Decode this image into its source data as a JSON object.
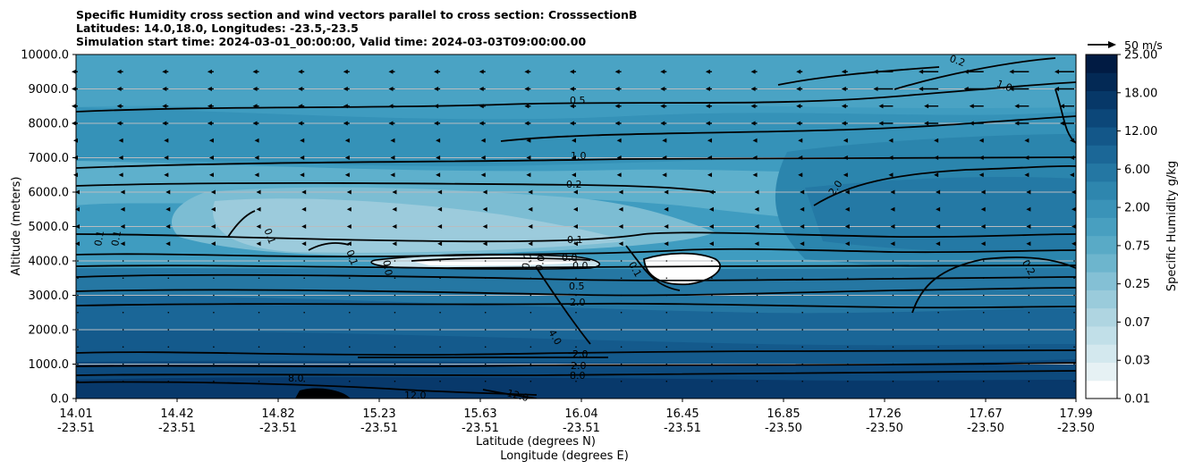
{
  "title_lines": [
    "Specific Humidity cross section and wind vectors parallel to cross section: CrosssectionB",
    "Latitudes: 14.0,18.0, Longitudes: -23.5,-23.5",
    "Simulation start time: 2024-03-01_00:00:00, Valid time: 2024-03-03T09:00:00.00"
  ],
  "chart_data": {
    "type": "contourf",
    "title": "Specific Humidity cross section and wind vectors parallel to cross section: CrosssectionB",
    "ylabel": "Altitude (meters)",
    "xlabel_lat": "Latitude (degrees N)",
    "xlabel_lon": "Longitude (degrees E)",
    "ylim": [
      0,
      10000
    ],
    "y_ticks": [
      "0.0",
      "1000.0",
      "2000.0",
      "3000.0",
      "4000.0",
      "5000.0",
      "6000.0",
      "7000.0",
      "8000.0",
      "9000.0",
      "10000.0"
    ],
    "x_ticks_lat": [
      "14.01",
      "14.42",
      "14.82",
      "15.23",
      "15.63",
      "16.04",
      "16.45",
      "16.85",
      "17.26",
      "17.67",
      "17.99"
    ],
    "x_ticks_lon": [
      "-23.51",
      "-23.51",
      "-23.51",
      "-23.51",
      "-23.51",
      "-23.51",
      "-23.51",
      "-23.50",
      "-23.50",
      "-23.50",
      "-23.50"
    ],
    "colorbar": {
      "label": "Specific Humidity g/kg",
      "tick_labels": [
        "0.01",
        "0.03",
        "0.07",
        "0.25",
        "0.75",
        "2.00",
        "6.00",
        "12.00",
        "18.00",
        "25.00"
      ],
      "levels": [
        0.01,
        0.02,
        0.03,
        0.05,
        0.07,
        0.1,
        0.25,
        0.5,
        0.75,
        1,
        2,
        4,
        6,
        8,
        12,
        15,
        18,
        21,
        25
      ],
      "colors": [
        "#ffffff",
        "#e6f1f4",
        "#d3e8ee",
        "#c1dfe8",
        "#afd5e1",
        "#9acbdb",
        "#84c0d5",
        "#6db5cd",
        "#59aac6",
        "#489fc0",
        "#3a93b8",
        "#2e86ae",
        "#2477a3",
        "#1b6797",
        "#135789",
        "#0c4779",
        "#073868",
        "#032955",
        "#011b43"
      ]
    },
    "quiver_key": {
      "label": "50 m/s",
      "value": 50
    },
    "contour_labels": [
      "0.5",
      "1.0",
      "0.2",
      "0.1",
      "0.1",
      "0.1",
      "0.1",
      "2.0",
      "2.0",
      "0.2",
      "0.1",
      "0.0",
      "0.0",
      "0.0",
      "0.0",
      "0.0",
      "0.1",
      "0.5",
      "2.0",
      "4.0",
      "2.0",
      "2.0",
      "8.0",
      "8.0",
      "12.0",
      "12.0",
      "0.2",
      "1.0"
    ],
    "series": [
      {
        "name": "wind vectors (m/s)",
        "rows_altitude_m": [
          9500,
          9000,
          8500,
          8000,
          7500,
          7000,
          6500,
          6000,
          5500,
          5000,
          4500
        ],
        "note": "westward-pointing arrows, strongest aloft"
      }
    ]
  }
}
